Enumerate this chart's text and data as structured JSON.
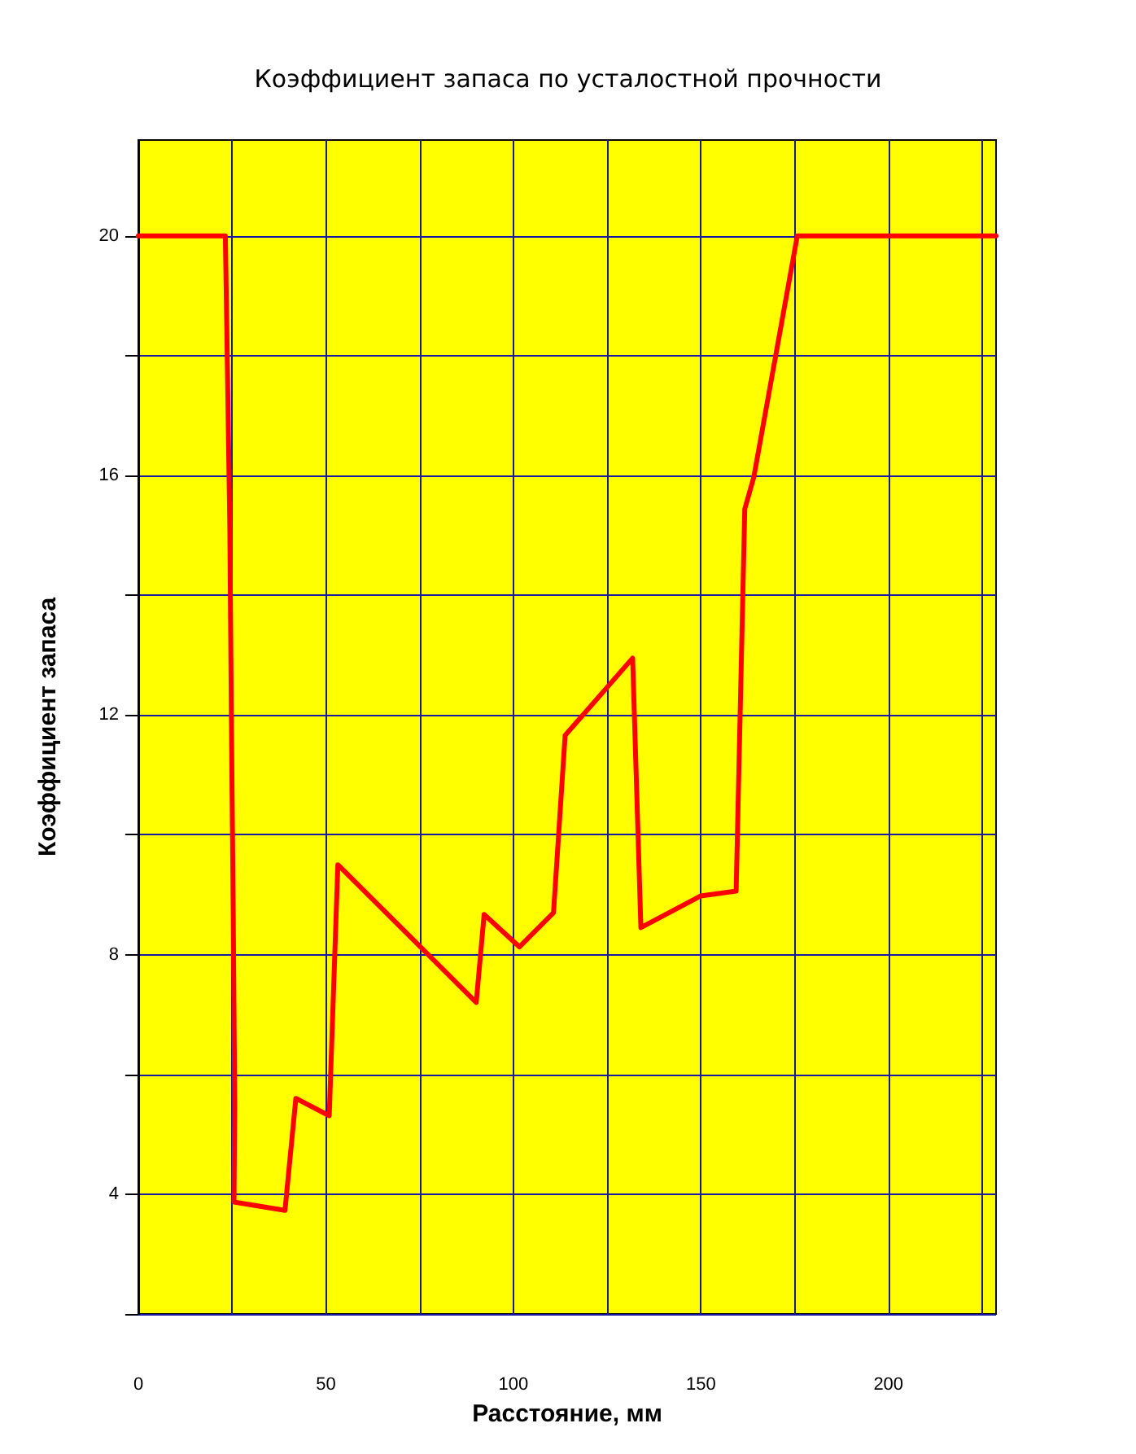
{
  "chart_data": {
    "type": "line",
    "title": "Коэффициент запаса по усталостной прочности",
    "xlabel": "Расстояние, мм",
    "ylabel": "Коэффициент запаса",
    "x": [
      0,
      23.2,
      23.6,
      24.4,
      24.8,
      25.3,
      25.7,
      25.5,
      39.1,
      42,
      50.9,
      53.2,
      90.1,
      92.2,
      101.6,
      110.7,
      113.8,
      131.8,
      134,
      150,
      159.4,
      161.7,
      164.1,
      175.7,
      228.7
    ],
    "series": [
      {
        "color": "#ff0000",
        "values": [
          20,
          20,
          18.4,
          15.1,
          12.0,
          8.7,
          5.5,
          3.87,
          3.73,
          5.6,
          5.31,
          9.5,
          7.2,
          8.67,
          8.13,
          8.7,
          11.66,
          12.95,
          8.45,
          8.98,
          9.06,
          15.44,
          15.97,
          20,
          20
        ]
      }
    ],
    "xlim": [
      0,
      228.7
    ],
    "ylim": [
      2,
      21.6
    ],
    "xticks": [
      0,
      {
        "value": 25,
        "label": null
      },
      50,
      {
        "value": 75,
        "label": null
      },
      100,
      {
        "value": 125,
        "label": null
      },
      150,
      {
        "value": 175,
        "label": null
      },
      200,
      {
        "value": 225,
        "label": null
      }
    ],
    "yticks": [
      {
        "value": 2,
        "label": null
      },
      4,
      {
        "value": 6,
        "label": null
      },
      8,
      {
        "value": 10,
        "label": null
      },
      12,
      {
        "value": 14,
        "label": null
      },
      16,
      {
        "value": 18,
        "label": null
      },
      20
    ],
    "grid": true,
    "marker": "none",
    "line_style": "solid"
  }
}
